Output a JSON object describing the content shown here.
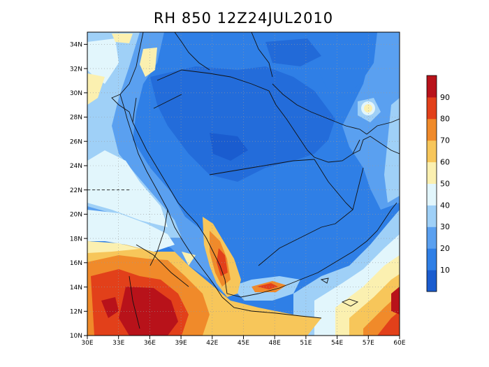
{
  "title": "RH 850 12Z24JUL2010",
  "x_ticks": [
    "30E",
    "33E",
    "36E",
    "39E",
    "42E",
    "45E",
    "48E",
    "51E",
    "54E",
    "57E",
    "60E"
  ],
  "y_ticks": [
    "10N",
    "12N",
    "14N",
    "16N",
    "18N",
    "20N",
    "22N",
    "24N",
    "26N",
    "28N",
    "30N",
    "32N",
    "34N"
  ],
  "colorbar": {
    "levels": [
      "10",
      "20",
      "30",
      "40",
      "50",
      "60",
      "70",
      "80",
      "90"
    ],
    "colors": [
      "#1a5ccf",
      "#2f7fe6",
      "#5aa0f0",
      "#9fd0f7",
      "#e2f6fc",
      "#fbf0b0",
      "#f7c65a",
      "#f08a2a",
      "#e2401a",
      "#b8121a"
    ]
  },
  "chart_data": {
    "type": "heatmap",
    "title": "RH 850 12Z24JUL2010",
    "variable": "RH",
    "level": "850",
    "time": "12Z24JUL2010",
    "xlim": [
      30,
      60
    ],
    "ylim": [
      10,
      35
    ],
    "contour_levels": [
      10,
      20,
      30,
      40,
      50,
      60,
      70,
      80,
      90
    ],
    "grid": true
  }
}
